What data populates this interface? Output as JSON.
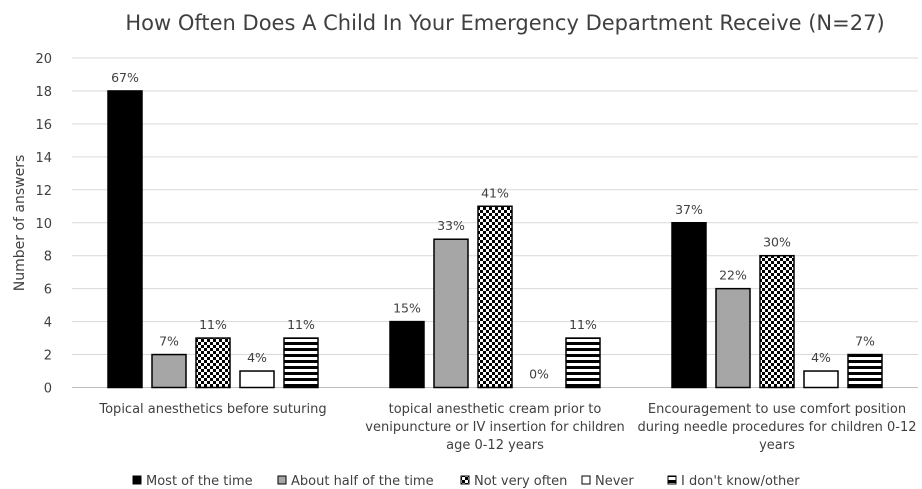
{
  "chart_data": {
    "type": "bar",
    "title": "How Often Does A Child In Your Emergency Department Receive (N=27)",
    "ylabel": "Number of answers",
    "xlabel": "",
    "ylim": [
      0,
      20
    ],
    "yticks": [
      0,
      2,
      4,
      6,
      8,
      10,
      12,
      14,
      16,
      18,
      20
    ],
    "grid": true,
    "legend_position": "bottom",
    "categories": [
      [
        "Topical anesthetics before suturing"
      ],
      [
        "topical anesthetic cream prior to",
        "venipuncture or IV insertion for children",
        "age 0-12 years"
      ],
      [
        "Encouragement to use comfort position",
        "during needle procedures for children 0-12",
        "years"
      ]
    ],
    "series": [
      {
        "name": "Most of the time",
        "pattern": "solid-black",
        "values": [
          18,
          4,
          10
        ],
        "labels": [
          "67%",
          "15%",
          "37%"
        ]
      },
      {
        "name": "About half of the time",
        "pattern": "solid-gray",
        "values": [
          2,
          9,
          6
        ],
        "labels": [
          "7%",
          "33%",
          "22%"
        ]
      },
      {
        "name": "Not very often",
        "pattern": "checker",
        "values": [
          3,
          11,
          8
        ],
        "labels": [
          "11%",
          "41%",
          "30%"
        ]
      },
      {
        "name": "Never",
        "pattern": "white",
        "values": [
          1,
          0,
          1
        ],
        "labels": [
          "4%",
          "0%",
          "4%"
        ]
      },
      {
        "name": "I don't know/other",
        "pattern": "hstripes",
        "values": [
          3,
          3,
          2
        ],
        "labels": [
          "11%",
          "11%",
          "7%"
        ]
      }
    ],
    "colors": {
      "black": "#000000",
      "gray": "#a6a6a6",
      "grid": "#d9d9d9",
      "text": "#404040"
    }
  }
}
